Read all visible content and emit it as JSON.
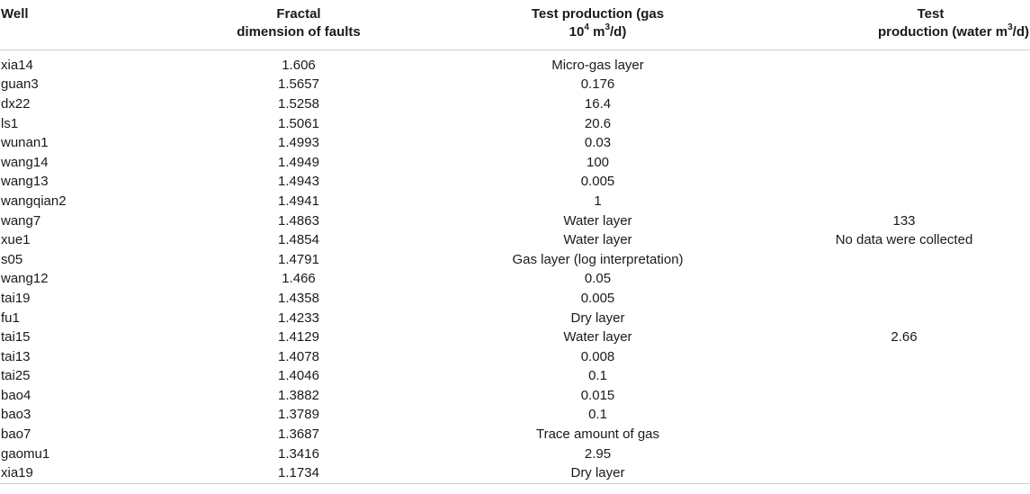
{
  "headers": {
    "well": "Well",
    "fractal_line1": "Fractal",
    "fractal_line2": "dimension of faults",
    "gas_line1": "Test production (gas",
    "gas_line2_pre": "10",
    "gas_line2_sup": "4",
    "gas_line2_mid": " m",
    "gas_line2_sup2": "3",
    "gas_line2_post": "/d)",
    "water_line1": "Test",
    "water_line2_pre": "production (water m",
    "water_line2_sup": "3",
    "water_line2_post": "/d)"
  },
  "rows": [
    {
      "well": "xia14",
      "fractal": "1.606",
      "gas": "Micro-gas layer",
      "water": ""
    },
    {
      "well": "guan3",
      "fractal": "1.5657",
      "gas": "0.176",
      "water": ""
    },
    {
      "well": "dx22",
      "fractal": "1.5258",
      "gas": "16.4",
      "water": ""
    },
    {
      "well": "ls1",
      "fractal": "1.5061",
      "gas": "20.6",
      "water": ""
    },
    {
      "well": "wunan1",
      "fractal": "1.4993",
      "gas": "0.03",
      "water": ""
    },
    {
      "well": "wang14",
      "fractal": "1.4949",
      "gas": "100",
      "water": ""
    },
    {
      "well": "wang13",
      "fractal": "1.4943",
      "gas": "0.005",
      "water": ""
    },
    {
      "well": "wangqian2",
      "fractal": "1.4941",
      "gas": "1",
      "water": ""
    },
    {
      "well": "wang7",
      "fractal": "1.4863",
      "gas": "Water layer",
      "water": "133"
    },
    {
      "well": "xue1",
      "fractal": "1.4854",
      "gas": "Water layer",
      "water": "No data were collected"
    },
    {
      "well": "s05",
      "fractal": "1.4791",
      "gas": "Gas layer (log interpretation)",
      "water": ""
    },
    {
      "well": "wang12",
      "fractal": "1.466",
      "gas": "0.05",
      "water": ""
    },
    {
      "well": "tai19",
      "fractal": "1.4358",
      "gas": "0.005",
      "water": ""
    },
    {
      "well": "fu1",
      "fractal": "1.4233",
      "gas": "Dry layer",
      "water": ""
    },
    {
      "well": "tai15",
      "fractal": "1.4129",
      "gas": "Water layer",
      "water": "2.66"
    },
    {
      "well": "tai13",
      "fractal": "1.4078",
      "gas": "0.008",
      "water": ""
    },
    {
      "well": "tai25",
      "fractal": "1.4046",
      "gas": "0.1",
      "water": ""
    },
    {
      "well": "bao4",
      "fractal": "1.3882",
      "gas": "0.015",
      "water": ""
    },
    {
      "well": "bao3",
      "fractal": "1.3789",
      "gas": "0.1",
      "water": ""
    },
    {
      "well": "bao7",
      "fractal": "1.3687",
      "gas": "Trace amount of gas",
      "water": ""
    },
    {
      "well": "gaomu1",
      "fractal": "1.3416",
      "gas": "2.95",
      "water": ""
    },
    {
      "well": "xia19",
      "fractal": "1.1734",
      "gas": "Dry layer",
      "water": ""
    }
  ]
}
